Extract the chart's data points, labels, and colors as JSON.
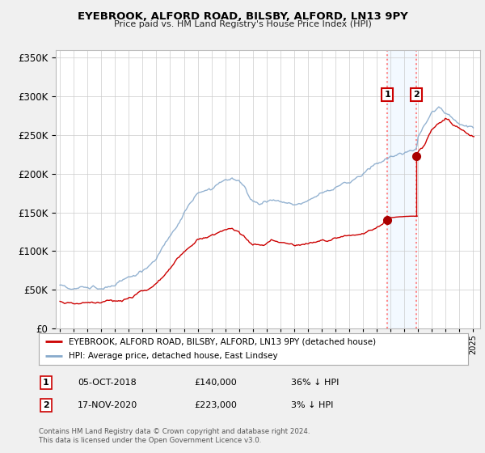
{
  "title": "EYEBROOK, ALFORD ROAD, BILSBY, ALFORD, LN13 9PY",
  "subtitle": "Price paid vs. HM Land Registry's House Price Index (HPI)",
  "footer": "Contains HM Land Registry data © Crown copyright and database right 2024.\nThis data is licensed under the Open Government Licence v3.0.",
  "legend_property": "EYEBROOK, ALFORD ROAD, BILSBY, ALFORD, LN13 9PY (detached house)",
  "legend_hpi": "HPI: Average price, detached house, East Lindsey",
  "transaction1": {
    "num": "1",
    "date": "05-OCT-2018",
    "price": "£140,000",
    "pct": "36% ↓ HPI"
  },
  "transaction2": {
    "num": "2",
    "date": "17-NOV-2020",
    "price": "£223,000",
    "pct": "3% ↓ HPI"
  },
  "transaction1_year": 2018.76,
  "transaction1_price": 140000,
  "transaction2_year": 2020.88,
  "transaction2_price": 223000,
  "ylim": [
    0,
    360000
  ],
  "xlim_start": 1994.7,
  "xlim_end": 2025.5,
  "property_color": "#cc0000",
  "hpi_color": "#88aacc",
  "background_color": "#f0f0f0",
  "plot_bg_color": "#ffffff",
  "grid_color": "#cccccc",
  "highlight_bg_color": "#ddeeff",
  "vline_color": "#ff8888",
  "num_box_color": "#cc0000"
}
